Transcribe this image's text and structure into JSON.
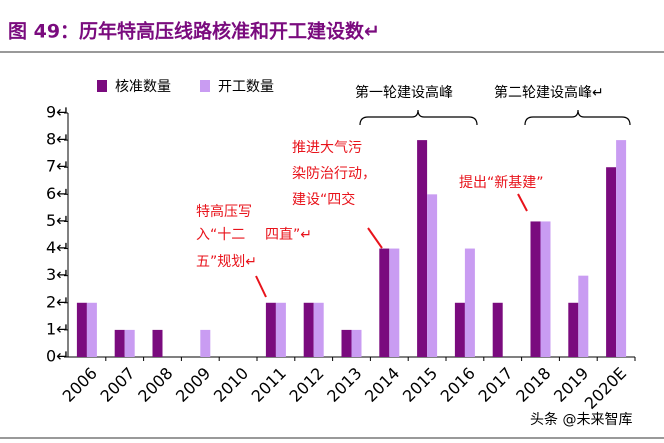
{
  "chart_data": {
    "type": "bar",
    "title": "图 49：历年特高压线路核准和开工建设数↵",
    "categories": [
      "2006",
      "2007",
      "2008",
      "2009",
      "2010",
      "2011",
      "2012",
      "2013",
      "2014",
      "2015",
      "2016",
      "2017",
      "2018",
      "2019",
      "2020E"
    ],
    "series": [
      {
        "name": "核准数量",
        "color": "#7a0b7e",
        "values": [
          2,
          1,
          1,
          0,
          0,
          2,
          2,
          1,
          4,
          8,
          2,
          2,
          5,
          2,
          7
        ]
      },
      {
        "name": "开工数量",
        "color": "#c99cf2",
        "values": [
          2,
          1,
          0,
          1,
          0,
          2,
          2,
          1,
          4,
          6,
          4,
          0,
          5,
          3,
          8
        ]
      }
    ],
    "ylim": [
      0,
      9
    ],
    "yticks": [
      {
        "value": 0,
        "label": "0↵"
      },
      {
        "value": 1,
        "label": "1↵"
      },
      {
        "value": 2,
        "label": "2↵"
      },
      {
        "value": 3,
        "label": "3↵"
      },
      {
        "value": 4,
        "label": "4↵"
      },
      {
        "value": 5,
        "label": "5↵"
      },
      {
        "value": 6,
        "label": "6↵"
      },
      {
        "value": 7,
        "label": "7↵"
      },
      {
        "value": 8,
        "label": "8↵"
      },
      {
        "value": 9,
        "label": "9↵"
      }
    ],
    "grid": false,
    "annotations": [
      {
        "lines": [
          "特高压写",
          "入“十二",
          "五”规划↵"
        ]
      },
      {
        "lines": [
          "推进大气污",
          "染防治行动，",
          "建设“四交",
          "四直”↵"
        ]
      },
      {
        "lines": [
          "提出“新基建”"
        ]
      }
    ],
    "brackets": [
      "第一轮建设高峰",
      "第二轮建设高峰↵"
    ],
    "watermark": "头条 @未来智库"
  }
}
